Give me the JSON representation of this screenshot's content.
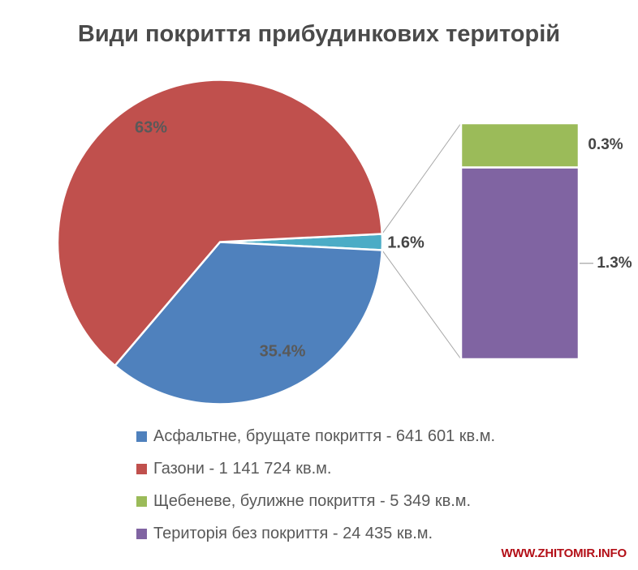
{
  "watermark": "WWW.ZHITOMIR.INFO",
  "colors": {
    "background": "#FFFFFF",
    "title_text": "#4A4A4A",
    "data_label_text": "#595959",
    "outside_label_text": "#454545",
    "legend_text": "#595959",
    "connector_line": "#A6A6A6",
    "slice_border": "#FFFFFF",
    "watermark": "#B30F17"
  },
  "chart_data": {
    "type": "pie",
    "variant": "bar-of-pie",
    "title": "Види покриття прибудинкових територій",
    "unit": "кв.м.",
    "slices": [
      {
        "name": "Асфальтне, брущате покриття",
        "area_sqm": 641601,
        "pct": 35.4,
        "pct_label": "35.4%",
        "color": "#4F81BD"
      },
      {
        "name": "Газони",
        "area_sqm": 1141724,
        "pct": 63,
        "pct_label": "63%",
        "color": "#C0504D"
      },
      {
        "name": "Щебеневе, булижне покриття",
        "area_sqm": 5349,
        "pct": 0.3,
        "pct_label": "0.3%",
        "color": "#9BBB59"
      },
      {
        "name": "Територія без покриття",
        "area_sqm": 24435,
        "pct": 1.3,
        "pct_label": "1.3%",
        "color": "#8064A2"
      }
    ],
    "other_slice": {
      "pct": 1.6,
      "pct_label": "1.6%",
      "color": "#4BACC6"
    },
    "legend_position": "bottom",
    "legend": [
      {
        "text": "Асфальтне, брущате покриття - 641 601 кв.м.",
        "color": "#4F81BD"
      },
      {
        "text": "Газони - 1 141 724 кв.м.",
        "color": "#C0504D"
      },
      {
        "text": "Щебеневе, булижне покриття - 5 349 кв.м.",
        "color": "#9BBB59"
      },
      {
        "text": "Територія без покриття - 24 435 кв.м.",
        "color": "#8064A2"
      }
    ]
  }
}
